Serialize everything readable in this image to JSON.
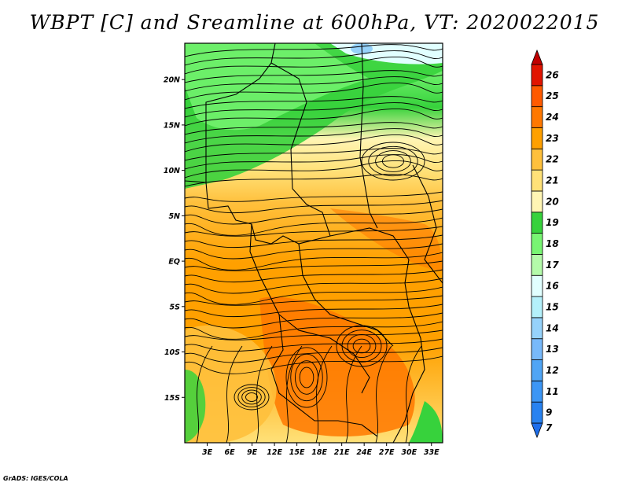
{
  "title": "WBPT [C] and Sreamline at 600hPa, VT: 2020022015",
  "credit": "GrADS: IGES/COLA",
  "map": {
    "lon_range": [
      0,
      34.5
    ],
    "lat_range": [
      -20,
      24
    ],
    "lat_ticks": [
      {
        "value": 20,
        "label": "20N"
      },
      {
        "value": 15,
        "label": "15N"
      },
      {
        "value": 10,
        "label": "10N"
      },
      {
        "value": 5,
        "label": "5N"
      },
      {
        "value": 0,
        "label": "EQ"
      },
      {
        "value": -5,
        "label": "5S"
      },
      {
        "value": -10,
        "label": "10S"
      },
      {
        "value": -15,
        "label": "15S"
      }
    ],
    "lon_ticks": [
      {
        "value": 3,
        "label": "3E"
      },
      {
        "value": 6,
        "label": "6E"
      },
      {
        "value": 9,
        "label": "9E"
      },
      {
        "value": 12,
        "label": "12E"
      },
      {
        "value": 15,
        "label": "15E"
      },
      {
        "value": 18,
        "label": "18E"
      },
      {
        "value": 21,
        "label": "21E"
      },
      {
        "value": 24,
        "label": "24E"
      },
      {
        "value": 27,
        "label": "27E"
      },
      {
        "value": 30,
        "label": "30E"
      },
      {
        "value": 33,
        "label": "33E"
      }
    ]
  },
  "colorbar": {
    "levels": [
      {
        "label": "7",
        "color": "#1e6eeb"
      },
      {
        "label": "9",
        "color": "#2882f0"
      },
      {
        "label": "11",
        "color": "#3c96f5"
      },
      {
        "label": "12",
        "color": "#50a5f5"
      },
      {
        "label": "13",
        "color": "#78b9fa"
      },
      {
        "label": "14",
        "color": "#96d2fa"
      },
      {
        "label": "15",
        "color": "#b4f0fa"
      },
      {
        "label": "16",
        "color": "#e1ffff"
      },
      {
        "label": "17",
        "color": "#b4faaa"
      },
      {
        "label": "18",
        "color": "#78f573"
      },
      {
        "label": "19",
        "color": "#37d23c"
      },
      {
        "label": "20",
        "color": "#fff5b4"
      },
      {
        "label": "21",
        "color": "#ffe178"
      },
      {
        "label": "22",
        "color": "#ffc03c"
      },
      {
        "label": "23",
        "color": "#ffa000"
      },
      {
        "label": "24",
        "color": "#ff7800"
      },
      {
        "label": "25",
        "color": "#ff5a00"
      },
      {
        "label": "26",
        "color": "#e11400"
      },
      {
        "label": "",
        "color": "#c00000"
      }
    ]
  }
}
